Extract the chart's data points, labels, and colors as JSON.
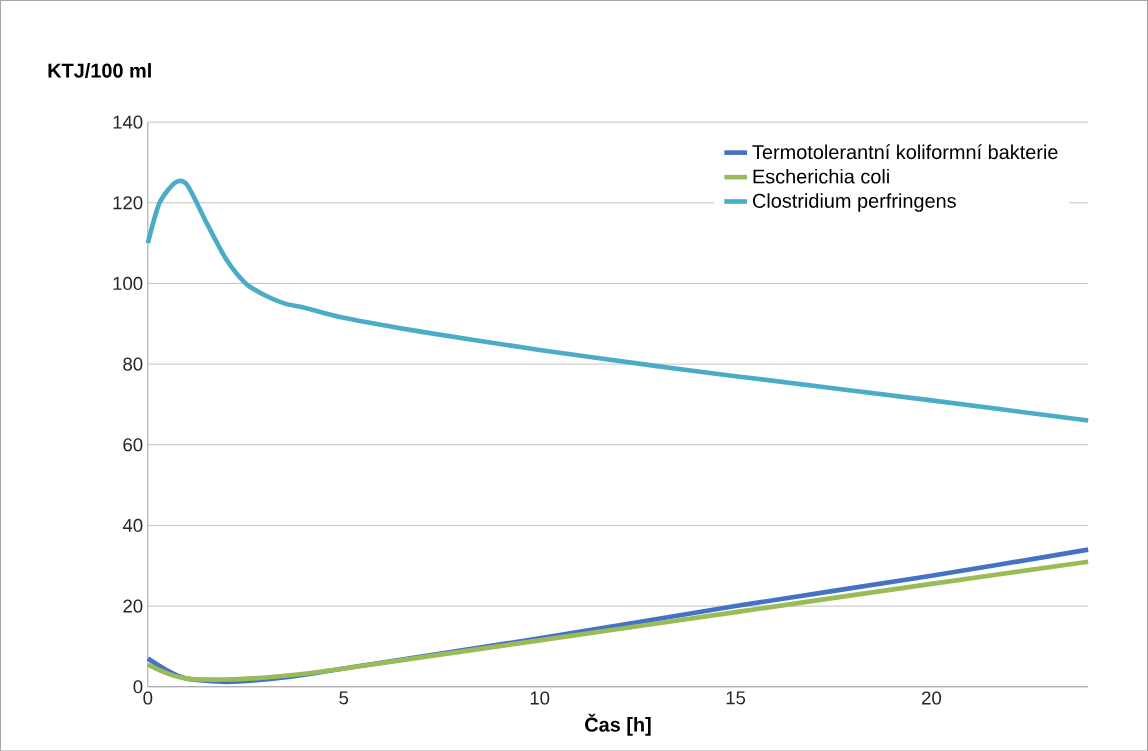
{
  "chart_data": {
    "type": "line",
    "xlabel": "Čas [h]",
    "ylabel": "KTJ/100 ml",
    "xlim": [
      0,
      24
    ],
    "ylim": [
      0,
      140
    ],
    "xticks": [
      0,
      5,
      10,
      15,
      20
    ],
    "yticks": [
      0,
      20,
      40,
      60,
      80,
      100,
      120,
      140
    ],
    "grid": "y",
    "legend": "top right",
    "marker": "none",
    "line_style": "solid",
    "series": [
      {
        "name": "Termotolerantní koliformní bakterie",
        "color": "#4472c4",
        "x": [
          0,
          0.5,
          1,
          2,
          3,
          4,
          5,
          10,
          15,
          20,
          24
        ],
        "values": [
          7,
          4,
          2,
          1.2,
          1.8,
          3,
          4.5,
          12,
          20,
          27.5,
          34
        ]
      },
      {
        "name": "Escherichia coli",
        "color": "#9bbb59",
        "x": [
          0,
          0.5,
          1,
          2,
          3,
          4,
          5,
          10,
          15,
          20,
          24
        ],
        "values": [
          5.5,
          3.3,
          2,
          1.8,
          2.3,
          3.2,
          4.5,
          11.5,
          18.5,
          25.5,
          31
        ]
      },
      {
        "name": "Clostridium perfringens",
        "color": "#4bacc6",
        "x": [
          0,
          0.3,
          0.7,
          1,
          1.5,
          2,
          2.5,
          3,
          3.5,
          4,
          5,
          7,
          10,
          13,
          15,
          20,
          24
        ],
        "values": [
          110,
          120,
          125,
          124.5,
          115,
          106,
          100,
          97,
          95,
          94,
          91.5,
          88,
          83.5,
          79.5,
          77,
          71,
          66
        ]
      }
    ]
  }
}
